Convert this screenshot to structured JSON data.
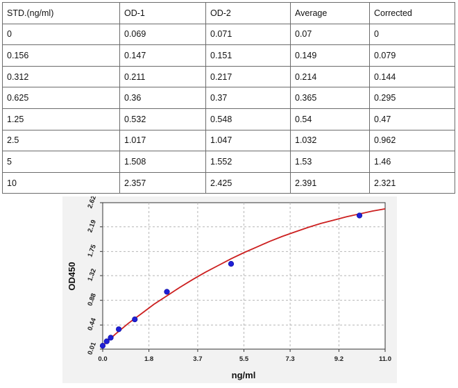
{
  "table": {
    "headers": [
      "STD.(ng/ml)",
      "OD-1",
      "OD-2",
      "Average",
      "Corrected"
    ],
    "rows": [
      [
        "0",
        "0.069",
        "0.071",
        "0.07",
        "0"
      ],
      [
        "0.156",
        "0.147",
        "0.151",
        "0.149",
        "0.079"
      ],
      [
        "0.312",
        "0.211",
        "0.217",
        "0.214",
        "0.144"
      ],
      [
        "0.625",
        "0.36",
        "0.37",
        "0.365",
        "0.295"
      ],
      [
        "1.25",
        "0.532",
        "0.548",
        "0.54",
        "0.47"
      ],
      [
        "2.5",
        "1.017",
        "1.047",
        "1.032",
        "0.962"
      ],
      [
        "5",
        "1.508",
        "1.552",
        "1.53",
        "1.46"
      ],
      [
        "10",
        "2.357",
        "2.425",
        "2.391",
        "2.321"
      ]
    ]
  },
  "chart_data": {
    "type": "scatter",
    "title": "",
    "xlabel": "ng/ml",
    "ylabel": "OD450",
    "xlim": [
      0.0,
      11.0
    ],
    "ylim": [
      0.01,
      2.62
    ],
    "xticks": [
      "0.0",
      "1.8",
      "3.7",
      "5.5",
      "7.3",
      "9.2",
      "11.0"
    ],
    "yticks": [
      "0.01",
      "0.44",
      "0.88",
      "1.32",
      "1.75",
      "2.19",
      "2.62"
    ],
    "grid": true,
    "series": [
      {
        "name": "Standards",
        "color": "#1f1fd6",
        "x": [
          0,
          0.156,
          0.312,
          0.625,
          1.25,
          2.5,
          5,
          10
        ],
        "y": [
          0.07,
          0.149,
          0.214,
          0.365,
          0.54,
          1.032,
          1.53,
          2.391
        ]
      }
    ],
    "fit": {
      "name": "Fitted curve",
      "color": "#cc1f1f",
      "x": [
        0,
        0.5,
        1,
        1.5,
        2,
        2.5,
        3,
        3.5,
        4,
        4.5,
        5,
        5.5,
        6,
        6.5,
        7,
        7.5,
        8,
        8.5,
        9,
        9.5,
        10,
        10.5,
        11
      ],
      "y": [
        0.07,
        0.28,
        0.47,
        0.64,
        0.81,
        0.96,
        1.11,
        1.25,
        1.38,
        1.5,
        1.62,
        1.73,
        1.83,
        1.93,
        2.02,
        2.1,
        2.18,
        2.25,
        2.31,
        2.37,
        2.42,
        2.47,
        2.51
      ]
    }
  }
}
